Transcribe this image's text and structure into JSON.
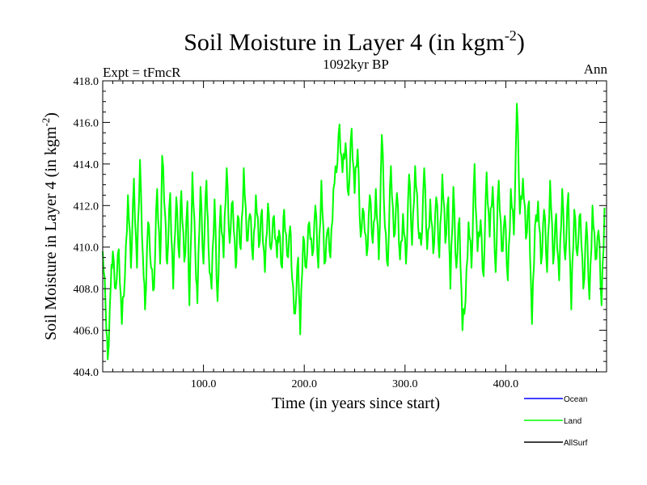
{
  "chart_data": {
    "type": "line",
    "title_main": "Soil Moisture in Layer 4 (in kgm",
    "title_sup": "-2",
    "title_close": ")",
    "subtitle_left": "Expt = tFmcR",
    "subtitle_center": "1092kyr BP",
    "subtitle_right": "Ann",
    "xlabel": "Time (in years since start)",
    "ylabel_main": "Soil Moisture in Layer 4 (in kgm",
    "ylabel_sup": "-2",
    "ylabel_close": ")",
    "xlim": [
      0,
      500
    ],
    "ylim": [
      404,
      418
    ],
    "x_ticks": [
      {
        "value": 100,
        "label": "100.0"
      },
      {
        "value": 200,
        "label": "200.0"
      },
      {
        "value": 300,
        "label": "300.0"
      },
      {
        "value": 400,
        "label": "400.0"
      }
    ],
    "y_ticks": [
      {
        "value": 404,
        "label": "404.0"
      },
      {
        "value": 406,
        "label": "406.0"
      },
      {
        "value": 408,
        "label": "408.0"
      },
      {
        "value": 410,
        "label": "410.0"
      },
      {
        "value": 412,
        "label": "412.0"
      },
      {
        "value": 414,
        "label": "414.0"
      },
      {
        "value": 416,
        "label": "416.0"
      },
      {
        "value": 418,
        "label": "418.0"
      }
    ],
    "legend": [
      {
        "name": "Ocean",
        "color": "#0000ff"
      },
      {
        "name": "Land",
        "color": "#00ff00"
      },
      {
        "name": "AllSurf",
        "color": "#000000"
      }
    ],
    "series": [
      {
        "name": "Land",
        "color": "#00ff00",
        "anchors": [
          [
            0,
            409.8
          ],
          [
            3,
            407.0
          ],
          [
            5,
            404.6
          ],
          [
            8,
            408.2
          ],
          [
            10,
            409.8
          ],
          [
            13,
            408.0
          ],
          [
            16,
            409.9
          ],
          [
            19,
            406.3
          ],
          [
            22,
            408.5
          ],
          [
            25,
            412.5
          ],
          [
            28,
            409.0
          ],
          [
            31,
            413.3
          ],
          [
            34,
            409.0
          ],
          [
            37,
            414.2
          ],
          [
            40,
            409.5
          ],
          [
            42,
            407.0
          ],
          [
            45,
            411.2
          ],
          [
            48,
            409.0
          ],
          [
            51,
            408.0
          ],
          [
            54,
            412.8
          ],
          [
            57,
            409.2
          ],
          [
            59,
            414.4
          ],
          [
            62,
            411.5
          ],
          [
            64,
            409.2
          ],
          [
            67,
            412.6
          ],
          [
            70,
            408.0
          ],
          [
            73,
            412.4
          ],
          [
            76,
            409.5
          ],
          [
            78,
            412.7
          ],
          [
            81,
            409.3
          ],
          [
            84,
            412.2
          ],
          [
            86,
            407.2
          ],
          [
            89,
            413.6
          ],
          [
            92,
            409.6
          ],
          [
            94,
            407.3
          ],
          [
            97,
            412.9
          ],
          [
            100,
            409.2
          ],
          [
            103,
            413.2
          ],
          [
            105,
            410.0
          ],
          [
            108,
            408.0
          ],
          [
            111,
            412.3
          ],
          [
            114,
            407.4
          ],
          [
            117,
            412.0
          ],
          [
            120,
            409.5
          ],
          [
            123,
            413.8
          ],
          [
            126,
            410.2
          ],
          [
            129,
            412.2
          ],
          [
            132,
            409.0
          ],
          [
            134,
            411.5
          ],
          [
            137,
            409.9
          ],
          [
            140,
            413.8
          ],
          [
            143,
            410.3
          ],
          [
            146,
            411.6
          ],
          [
            149,
            409.4
          ],
          [
            152,
            412.5
          ],
          [
            155,
            410.0
          ],
          [
            158,
            411.8
          ],
          [
            161,
            408.8
          ],
          [
            164,
            412.1
          ],
          [
            167,
            409.9
          ],
          [
            170,
            411.5
          ],
          [
            173,
            409.5
          ],
          [
            175,
            410.8
          ],
          [
            178,
            409.0
          ],
          [
            180,
            411.8
          ],
          [
            183,
            409.6
          ],
          [
            186,
            411.0
          ],
          [
            188,
            408.5
          ],
          [
            191,
            406.8
          ],
          [
            194,
            409.5
          ],
          [
            196,
            405.8
          ],
          [
            199,
            410.5
          ],
          [
            202,
            409.0
          ],
          [
            205,
            411.2
          ],
          [
            208,
            409.6
          ],
          [
            211,
            412.0
          ],
          [
            214,
            409.0
          ],
          [
            217,
            413.2
          ],
          [
            220,
            409.2
          ],
          [
            223,
            410.8
          ],
          [
            226,
            409.5
          ],
          [
            229,
            412.8
          ],
          [
            232,
            413.6
          ],
          [
            235,
            415.9
          ],
          [
            238,
            413.6
          ],
          [
            241,
            415.0
          ],
          [
            244,
            412.5
          ],
          [
            247,
            415.7
          ],
          [
            250,
            412.6
          ],
          [
            253,
            414.7
          ],
          [
            256,
            410.5
          ],
          [
            259,
            411.7
          ],
          [
            262,
            409.6
          ],
          [
            265,
            412.5
          ],
          [
            268,
            410.2
          ],
          [
            271,
            412.8
          ],
          [
            274,
            409.4
          ],
          [
            277,
            415.4
          ],
          [
            280,
            411.0
          ],
          [
            283,
            409.1
          ],
          [
            286,
            413.9
          ],
          [
            289,
            410.5
          ],
          [
            292,
            412.6
          ],
          [
            295,
            409.4
          ],
          [
            298,
            411.6
          ],
          [
            301,
            409.2
          ],
          [
            304,
            413.5
          ],
          [
            307,
            410.1
          ],
          [
            310,
            413.9
          ],
          [
            313,
            411.0
          ],
          [
            316,
            410.1
          ],
          [
            319,
            413.8
          ],
          [
            322,
            409.9
          ],
          [
            325,
            412.3
          ],
          [
            328,
            409.7
          ],
          [
            331,
            412.4
          ],
          [
            334,
            409.5
          ],
          [
            337,
            413.5
          ],
          [
            340,
            410.2
          ],
          [
            343,
            412.4
          ],
          [
            345,
            408.0
          ],
          [
            348,
            412.9
          ],
          [
            351,
            409.0
          ],
          [
            354,
            411.4
          ],
          [
            357,
            406.0
          ],
          [
            360,
            407.4
          ],
          [
            363,
            411.2
          ],
          [
            366,
            409.0
          ],
          [
            369,
            414.0
          ],
          [
            372,
            409.8
          ],
          [
            375,
            411.3
          ],
          [
            378,
            408.6
          ],
          [
            381,
            413.6
          ],
          [
            384,
            410.5
          ],
          [
            387,
            412.9
          ],
          [
            390,
            408.8
          ],
          [
            393,
            413.2
          ],
          [
            396,
            409.8
          ],
          [
            399,
            411.5
          ],
          [
            402,
            408.4
          ],
          [
            405,
            412.8
          ],
          [
            408,
            410.6
          ],
          [
            411,
            416.9
          ],
          [
            414,
            411.6
          ],
          [
            417,
            413.3
          ],
          [
            420,
            410.4
          ],
          [
            423,
            412.2
          ],
          [
            426,
            406.3
          ],
          [
            429,
            411.0
          ],
          [
            432,
            412.2
          ],
          [
            435,
            409.2
          ],
          [
            438,
            411.8
          ],
          [
            441,
            408.8
          ],
          [
            444,
            413.2
          ],
          [
            447,
            409.2
          ],
          [
            450,
            411.6
          ],
          [
            453,
            408.4
          ],
          [
            456,
            412.8
          ],
          [
            459,
            409.4
          ],
          [
            462,
            412.6
          ],
          [
            465,
            407.0
          ],
          [
            468,
            411.8
          ],
          [
            471,
            409.6
          ],
          [
            474,
            411.6
          ],
          [
            477,
            408.0
          ],
          [
            480,
            411.2
          ],
          [
            483,
            407.5
          ],
          [
            486,
            412.0
          ],
          [
            489,
            409.4
          ],
          [
            492,
            410.8
          ],
          [
            495,
            407.2
          ],
          [
            498,
            411.9
          ]
        ]
      }
    ]
  }
}
